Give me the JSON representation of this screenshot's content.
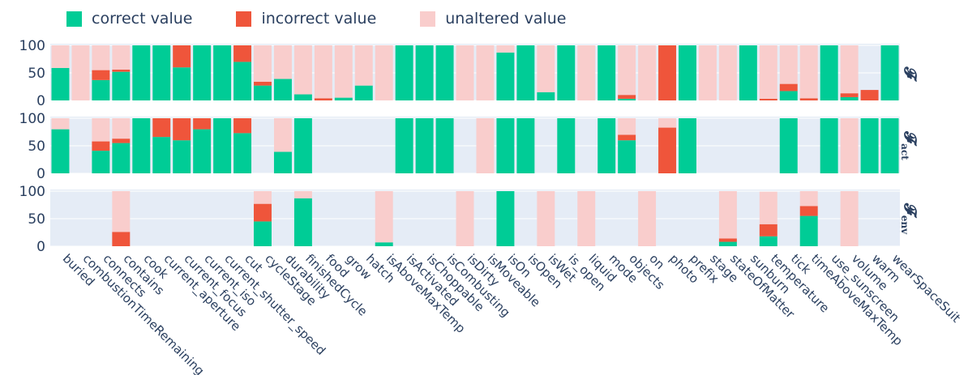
{
  "chart_data": {
    "type": "bar",
    "barmode": "stack",
    "legend": {
      "position": "top-left",
      "entries": [
        {
          "key": "correct",
          "label": "correct value",
          "color": "#00cc96"
        },
        {
          "key": "incorrect",
          "label": "incorrect value",
          "color": "#ef553b"
        },
        {
          "key": "unaltered",
          "label": "unaltered value",
          "color": "#f9cdcc"
        }
      ]
    },
    "ylim": [
      0,
      100
    ],
    "yticks": [
      "0",
      "50",
      "100"
    ],
    "categories": [
      "buried",
      "combustionTimeRemaining",
      "connects",
      "contains",
      "cook",
      "current_aperture",
      "current_focus",
      "current_iso",
      "current_shutter_speed",
      "cut",
      "cycleStage",
      "durability",
      "finishedCycle",
      "food",
      "grow",
      "hatch",
      "isAboveMaxTemp",
      "isActivated",
      "isChoppable",
      "isCombusting",
      "isDirty",
      "isMoveable",
      "isOn",
      "isOpen",
      "isWet",
      "is_open",
      "liquid",
      "mode",
      "objects",
      "on",
      "photo",
      "prefix",
      "stage",
      "stateOfMatter",
      "sunburn",
      "temperature",
      "tick",
      "timeAboveMaxTemp",
      "use_sunscreen",
      "volume",
      "warm",
      "wearSpaceSuit"
    ],
    "panels": [
      {
        "label_main": "𝓕",
        "label_sub": "",
        "series": {
          "correct": [
            59,
            0,
            37,
            52,
            100,
            100,
            60,
            100,
            100,
            70,
            27,
            39,
            11,
            0,
            5,
            27,
            0,
            100,
            100,
            100,
            0,
            0,
            87,
            100,
            15,
            100,
            0,
            100,
            3,
            0,
            0,
            100,
            0,
            0,
            100,
            0,
            17,
            0,
            100,
            6,
            0,
            100
          ],
          "incorrect": [
            0,
            0,
            18,
            4,
            0,
            0,
            40,
            0,
            0,
            30,
            7,
            0,
            0,
            4,
            0,
            0,
            0,
            0,
            0,
            0,
            0,
            0,
            0,
            0,
            0,
            0,
            0,
            0,
            7,
            0,
            100,
            0,
            0,
            0,
            0,
            3,
            13,
            4,
            0,
            7,
            19,
            0
          ],
          "unaltered": [
            41,
            100,
            45,
            44,
            0,
            0,
            0,
            0,
            0,
            0,
            66,
            61,
            89,
            96,
            95,
            73,
            100,
            0,
            0,
            0,
            100,
            100,
            13,
            0,
            85,
            0,
            100,
            0,
            90,
            100,
            0,
            0,
            100,
            100,
            0,
            97,
            70,
            96,
            0,
            87,
            0,
            0
          ]
        }
      },
      {
        "label_main": "𝓕",
        "label_sub": "act",
        "series": {
          "correct": [
            80,
            0,
            41,
            55,
            100,
            66,
            60,
            80,
            100,
            73,
            0,
            39,
            100,
            0,
            0,
            0,
            0,
            100,
            100,
            100,
            0,
            0,
            100,
            100,
            0,
            100,
            0,
            100,
            60,
            0,
            0,
            100,
            0,
            0,
            0,
            0,
            100,
            0,
            100,
            0,
            100,
            100
          ],
          "incorrect": [
            0,
            0,
            17,
            8,
            0,
            34,
            40,
            20,
            0,
            27,
            0,
            0,
            0,
            0,
            0,
            0,
            0,
            0,
            0,
            0,
            0,
            0,
            0,
            0,
            0,
            0,
            0,
            0,
            10,
            0,
            83,
            0,
            0,
            0,
            0,
            0,
            0,
            0,
            0,
            0,
            0,
            0
          ],
          "unaltered": [
            20,
            0,
            42,
            37,
            0,
            0,
            0,
            0,
            0,
            0,
            0,
            61,
            0,
            0,
            0,
            0,
            0,
            0,
            0,
            0,
            0,
            100,
            0,
            0,
            0,
            0,
            0,
            0,
            30,
            0,
            17,
            0,
            0,
            0,
            0,
            0,
            0,
            0,
            0,
            100,
            0,
            0
          ]
        }
      },
      {
        "label_main": "𝓕",
        "label_sub": "env",
        "series": {
          "correct": [
            0,
            0,
            0,
            0,
            0,
            0,
            0,
            0,
            0,
            0,
            45,
            0,
            87,
            0,
            0,
            0,
            7,
            0,
            0,
            0,
            0,
            0,
            100,
            0,
            0,
            0,
            0,
            0,
            0,
            0,
            0,
            0,
            0,
            8,
            0,
            18,
            0,
            55,
            0,
            0,
            0,
            0
          ],
          "incorrect": [
            0,
            0,
            0,
            26,
            0,
            0,
            0,
            0,
            0,
            0,
            32,
            0,
            0,
            0,
            0,
            0,
            0,
            0,
            0,
            0,
            0,
            0,
            0,
            0,
            0,
            0,
            0,
            0,
            0,
            0,
            0,
            0,
            0,
            6,
            0,
            22,
            0,
            18,
            0,
            0,
            0,
            0
          ],
          "unaltered": [
            0,
            0,
            0,
            74,
            0,
            0,
            0,
            0,
            0,
            0,
            23,
            0,
            13,
            0,
            0,
            0,
            93,
            0,
            0,
            0,
            100,
            0,
            0,
            0,
            100,
            0,
            100,
            0,
            0,
            100,
            0,
            0,
            0,
            86,
            0,
            59,
            0,
            27,
            0,
            100,
            0,
            0
          ]
        }
      }
    ]
  }
}
